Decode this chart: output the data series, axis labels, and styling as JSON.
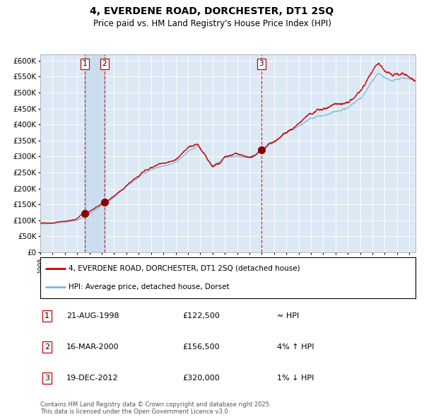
{
  "title": "4, EVERDENE ROAD, DORCHESTER, DT1 2SQ",
  "subtitle": "Price paid vs. HM Land Registry's House Price Index (HPI)",
  "legend_line1": "4, EVERDENE ROAD, DORCHESTER, DT1 2SQ (detached house)",
  "legend_line2": "HPI: Average price, detached house, Dorset",
  "transactions": [
    {
      "num": 1,
      "date": "21-AUG-1998",
      "price": 122500,
      "vs_hpi": "≈ HPI"
    },
    {
      "num": 2,
      "date": "16-MAR-2000",
      "price": 156500,
      "vs_hpi": "4% ↑ HPI"
    },
    {
      "num": 3,
      "date": "19-DEC-2012",
      "price": 320000,
      "vs_hpi": "1% ↓ HPI"
    }
  ],
  "transaction_dates_decimal": [
    1998.636,
    2000.208,
    2012.964
  ],
  "background_color": "#dce9f5",
  "plot_bg_color": "#dce9f5",
  "hpi_line_color": "#7ab8d9",
  "price_line_color": "#cc0000",
  "vline_color": "#cc0000",
  "marker_color": "#8b0000",
  "marker_size": 7,
  "ylim": [
    0,
    620000
  ],
  "ytick_step": 50000,
  "footnote": "Contains HM Land Registry data © Crown copyright and database right 2025.\nThis data is licensed under the Open Government Licence v3.0.",
  "xstart": 1995.0,
  "xend": 2025.5
}
